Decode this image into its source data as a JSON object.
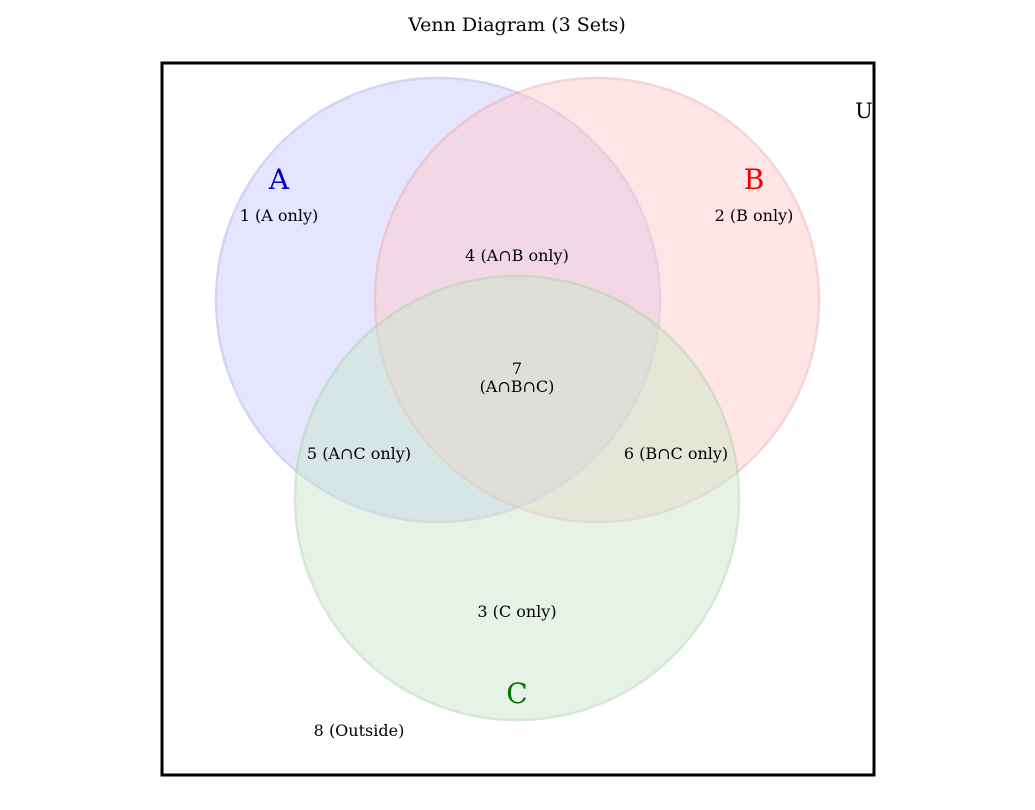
{
  "title": "Venn Diagram (3 Sets)",
  "universe_label": "U",
  "sets": [
    {
      "name": "A",
      "fill": "#ccccff",
      "stroke": "#aaaaf0",
      "label_color": "#0000cc"
    },
    {
      "name": "B",
      "fill": "#ffcccc",
      "stroke": "#f0aaaa",
      "label_color": "#ee0000"
    },
    {
      "name": "C",
      "fill": "#cce6cc",
      "stroke": "#aad4aa",
      "label_color": "#007700"
    }
  ],
  "regions": {
    "a_only": "1 (A only)",
    "b_only": "2 (B only)",
    "c_only": "3 (C only)",
    "ab_only": "4 (A∩B only)",
    "ac_only": "5 (A∩C only)",
    "bc_only": "6 (B∩C only)",
    "abc_number": "7",
    "abc_label": "(A∩B∩C)",
    "outside": "8 (Outside)"
  }
}
